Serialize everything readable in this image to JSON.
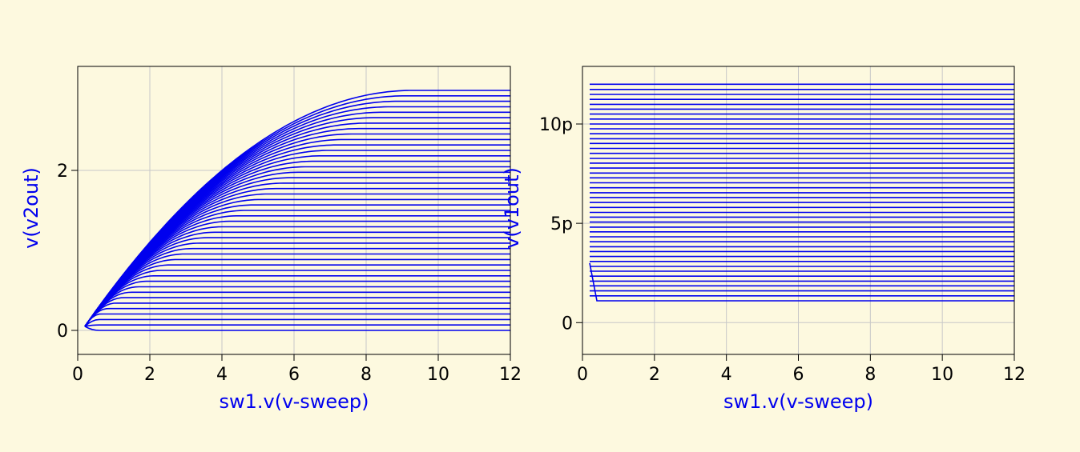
{
  "colors": {
    "background": "#fdf9df",
    "trace": "#0000ee",
    "grid": "#c8c8c8",
    "axis": "#000000"
  },
  "chart_data": [
    {
      "type": "line",
      "xlabel": "sw1.v(v-sweep)",
      "ylabel": "v(v2out)",
      "xlim": [
        0,
        12
      ],
      "ylim": [
        -0.3,
        3.3
      ],
      "xticks": [
        0,
        2,
        4,
        6,
        8,
        10,
        12
      ],
      "yticks": [
        0,
        2
      ],
      "ytick_labels": [
        "0",
        "2"
      ],
      "grid": true,
      "x_start": 0.2,
      "series_count": 45,
      "family": "rising curves that saturate; saturation level from 0.0 to 3.0 in equal steps, all starting near 0.05 at x = 0.2, reaching their plateau at about x = 3.1 × level",
      "saturation_levels": [
        0.0,
        0.068,
        0.136,
        0.205,
        0.273,
        0.341,
        0.409,
        0.477,
        0.545,
        0.614,
        0.682,
        0.75,
        0.818,
        0.886,
        0.955,
        1.023,
        1.091,
        1.159,
        1.227,
        1.295,
        1.364,
        1.432,
        1.5,
        1.568,
        1.636,
        1.705,
        1.773,
        1.841,
        1.909,
        1.977,
        2.045,
        2.114,
        2.182,
        2.25,
        2.318,
        2.386,
        2.455,
        2.523,
        2.591,
        2.659,
        2.727,
        2.795,
        2.864,
        2.932,
        3.0
      ]
    },
    {
      "type": "line",
      "xlabel": "sw1.v(v-sweep)",
      "ylabel": "v(v1out)",
      "xlim": [
        0,
        12
      ],
      "ylim": [
        -1.6,
        12.9
      ],
      "xticks": [
        0,
        2,
        4,
        6,
        8,
        10,
        12
      ],
      "yticks": [
        0,
        5,
        10
      ],
      "ytick_labels": [
        "0",
        "5p",
        "10p"
      ],
      "grid": true,
      "x_start": 0.2,
      "x_start_drop_to": 0.4,
      "series_count": 45,
      "family": "flat lines from x = 0.2 to 12, levels from 1.1 to 12.0 in equal steps; the lowest series falls from 3.0 to 1.1 between x = 0.2 and x = 0.4",
      "levels": [
        1.1,
        1.35,
        1.6,
        1.85,
        2.09,
        2.34,
        2.59,
        2.83,
        3.08,
        3.33,
        3.58,
        3.82,
        4.07,
        4.32,
        4.57,
        4.81,
        5.06,
        5.31,
        5.55,
        5.8,
        6.05,
        6.3,
        6.54,
        6.79,
        7.04,
        7.29,
        7.53,
        7.78,
        8.03,
        8.27,
        8.52,
        8.77,
        9.02,
        9.26,
        9.51,
        9.76,
        10.0,
        10.25,
        10.5,
        10.75,
        10.99,
        11.24,
        11.49,
        11.74,
        12.0
      ]
    }
  ]
}
